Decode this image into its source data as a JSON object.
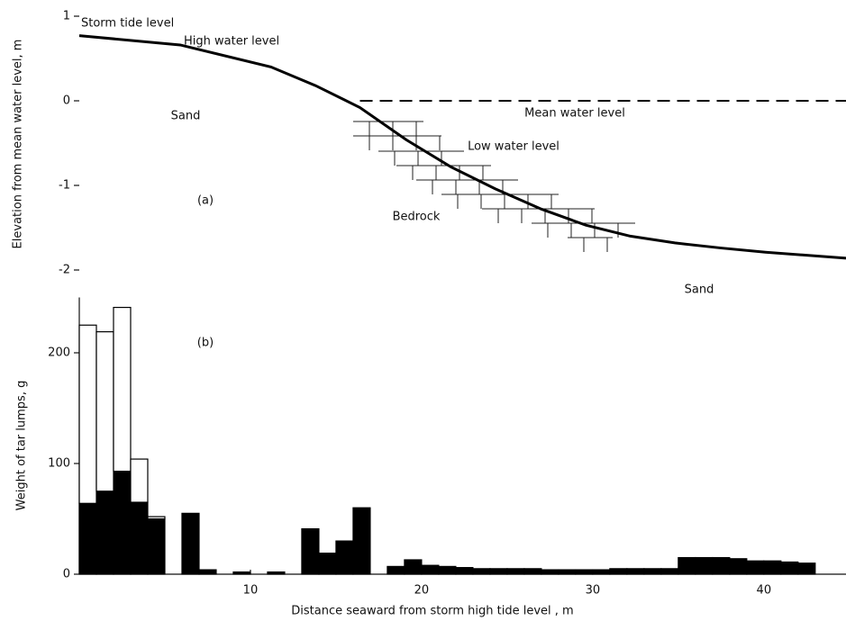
{
  "chart_data": [
    {
      "type": "line",
      "ylabel": "Elevation from mean water level,  m",
      "xlim": [
        0,
        44.8
      ],
      "ylim": [
        -2,
        1
      ],
      "yticks": [
        -2,
        -1,
        0,
        1
      ],
      "series": [
        {
          "color": "#000000",
          "dash": false,
          "x": [
            0,
            5.9,
            11.2,
            13.8,
            16.4,
            19.1,
            21.7,
            24.3,
            27,
            29.6,
            32.2,
            34.8,
            37.5,
            40.1,
            44.8
          ],
          "values": [
            0.77,
            0.66,
            0.4,
            0.18,
            -0.08,
            -0.46,
            -0.78,
            -1.04,
            -1.28,
            -1.47,
            -1.6,
            -1.68,
            -1.74,
            -1.79,
            -1.86
          ]
        },
        {
          "color": "#000000",
          "dash": true,
          "x": [
            16.4,
            44.8
          ],
          "values": [
            0,
            0
          ]
        }
      ],
      "annotations": [
        "Storm tide level",
        "High water level",
        "Mean water level",
        "Low water level",
        "Sand",
        "Sand",
        "Bedrock",
        "(a)"
      ]
    },
    {
      "type": "histogram",
      "ylabel": "Weight of tar lumps,  g",
      "xlabel": "Distance seaward from storm high tide level ,   m",
      "xlim": [
        0,
        44.8
      ],
      "ylim": [
        0,
        250
      ],
      "yticks": [
        0,
        100,
        200
      ],
      "xticks": [
        10,
        20,
        30,
        40
      ],
      "bins": [
        0,
        1,
        2,
        3,
        4,
        5,
        6,
        7,
        8,
        9,
        10,
        11,
        12,
        13,
        14,
        15,
        16,
        17,
        18,
        19,
        20,
        21,
        22,
        23,
        24,
        25,
        26,
        27,
        28,
        29,
        30,
        31,
        32,
        33,
        34,
        35,
        36,
        37,
        38,
        39,
        40,
        41,
        42,
        43
      ],
      "series": [
        {
          "color": "#000000",
          "values": [
            64,
            75,
            93,
            65,
            50,
            0,
            55,
            4,
            0,
            2,
            0,
            2,
            0,
            41,
            19,
            30,
            60,
            0,
            7,
            13,
            8,
            7,
            6,
            5,
            5,
            5,
            5,
            4,
            4,
            4,
            4,
            5,
            5,
            5,
            5,
            15,
            15,
            15,
            14,
            12,
            12,
            11,
            10
          ]
        },
        {
          "color": "#ffffff",
          "values": [
            161,
            144,
            148,
            39,
            2,
            0,
            0,
            0,
            0,
            0,
            0,
            0,
            0,
            0,
            0,
            0,
            0,
            0,
            0,
            0,
            0,
            0,
            0,
            0,
            0,
            0,
            0,
            0,
            0,
            0,
            0,
            0,
            0,
            0,
            0,
            0,
            0,
            0,
            0,
            0,
            0,
            0,
            0
          ]
        }
      ],
      "annotations": [
        "(b)"
      ]
    }
  ]
}
